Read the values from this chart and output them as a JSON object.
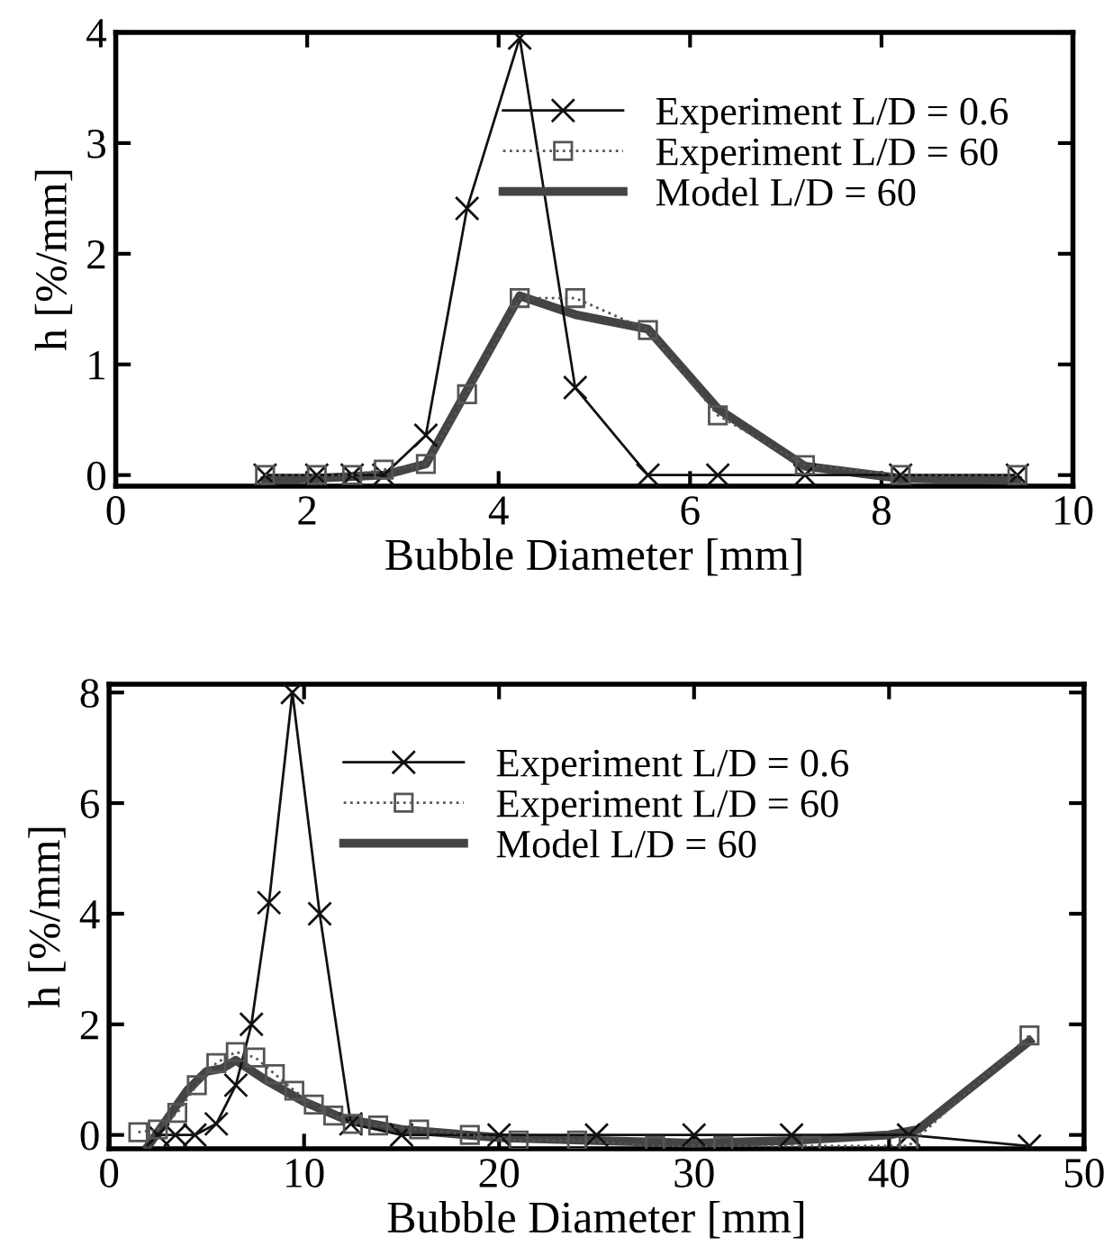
{
  "chart_data": [
    {
      "type": "line",
      "xlabel": "Bubble Diameter [mm]",
      "ylabel": "h [%/mm]",
      "xlim": [
        0,
        10
      ],
      "ylim": [
        -0.1,
        4
      ],
      "xticks": [
        0,
        2,
        4,
        6,
        8,
        10
      ],
      "yticks": [
        0,
        1,
        2,
        3,
        4
      ],
      "legend": "top right",
      "grid": false,
      "series": [
        {
          "name": "Experiment L/D = 0.6",
          "color": "#111111",
          "marker": "cross",
          "line_style": "solid",
          "x": [
            1.56,
            2.1,
            2.47,
            2.8,
            3.24,
            3.67,
            4.22,
            4.8,
            5.56,
            6.29,
            7.2,
            8.2,
            9.42
          ],
          "values": [
            0,
            0,
            0,
            0,
            0.36,
            2.41,
            3.95,
            0.79,
            0,
            0,
            0,
            0,
            0
          ]
        },
        {
          "name": "Experiment L/D = 60",
          "color": "#555555",
          "marker": "square",
          "line_style": "dotted",
          "x": [
            1.56,
            2.1,
            2.47,
            2.8,
            3.24,
            3.67,
            4.22,
            4.8,
            5.56,
            6.29,
            7.2,
            8.2,
            9.42
          ],
          "values": [
            0,
            0,
            0,
            0.05,
            0.1,
            0.73,
            1.6,
            1.6,
            1.31,
            0.54,
            0.09,
            0,
            0
          ]
        },
        {
          "name": "Model L/D = 60",
          "color": "#444444",
          "marker": "none",
          "line_style": "solid",
          "x": [
            1.56,
            2.8,
            3.24,
            4.22,
            4.8,
            5.56,
            6.29,
            7.2,
            8.2,
            9.42
          ],
          "values": [
            -0.05,
            0,
            0.1,
            1.62,
            1.45,
            1.32,
            0.6,
            0.08,
            -0.03,
            -0.05
          ]
        }
      ]
    },
    {
      "type": "line",
      "xlabel": "Bubble Diameter [mm]",
      "ylabel": "h [%/mm]",
      "xlim": [
        0,
        50
      ],
      "ylim": [
        -0.25,
        8.15
      ],
      "xticks": [
        0,
        10,
        20,
        30,
        40,
        50
      ],
      "yticks": [
        0,
        2,
        4,
        6,
        8
      ],
      "legend": "top",
      "grid": false,
      "series": [
        {
          "name": "Experiment L/D = 0.6",
          "color": "#111111",
          "marker": "cross",
          "line_style": "solid",
          "x": [
            2.5,
            3.4,
            4.4,
            5.5,
            6.5,
            7.3,
            8.2,
            9.4,
            10.8,
            12.4,
            15,
            20,
            25,
            30,
            35,
            41,
            47.2
          ],
          "values": [
            0,
            0,
            0,
            0.2,
            0.9,
            2,
            4.2,
            8,
            4,
            0.2,
            0,
            0,
            0,
            0,
            0,
            0,
            -0.2
          ]
        },
        {
          "name": "Experiment L/D = 60",
          "color": "#555555",
          "marker": "square",
          "line_style": "dotted",
          "x": [
            1.5,
            2.5,
            3.5,
            4.5,
            5.5,
            6.5,
            7.5,
            8.5,
            9.5,
            10.5,
            11.5,
            12.5,
            13.8,
            15.9,
            18.5,
            21,
            24,
            28,
            31.5,
            36,
            41,
            47.2
          ],
          "values": [
            0.05,
            0.1,
            0.4,
            0.9,
            1.3,
            1.5,
            1.4,
            1.1,
            0.8,
            0.55,
            0.35,
            0.2,
            0.17,
            0.1,
            0,
            -0.1,
            -0.1,
            -0.2,
            -0.2,
            -0.2,
            -0.2,
            1.8
          ]
        },
        {
          "name": "Model L/D = 60",
          "color": "#444444",
          "marker": "none",
          "line_style": "solid",
          "x": [
            2,
            4,
            5,
            5.8,
            6.5,
            8,
            10,
            12,
            15,
            20,
            25,
            30,
            35,
            40,
            41.5,
            47.2
          ],
          "values": [
            -0.2,
            0.8,
            1.15,
            1.2,
            1.35,
            1.0,
            0.6,
            0.3,
            0.1,
            -0.05,
            -0.1,
            -0.15,
            -0.1,
            0,
            0.1,
            1.7
          ]
        }
      ]
    }
  ]
}
